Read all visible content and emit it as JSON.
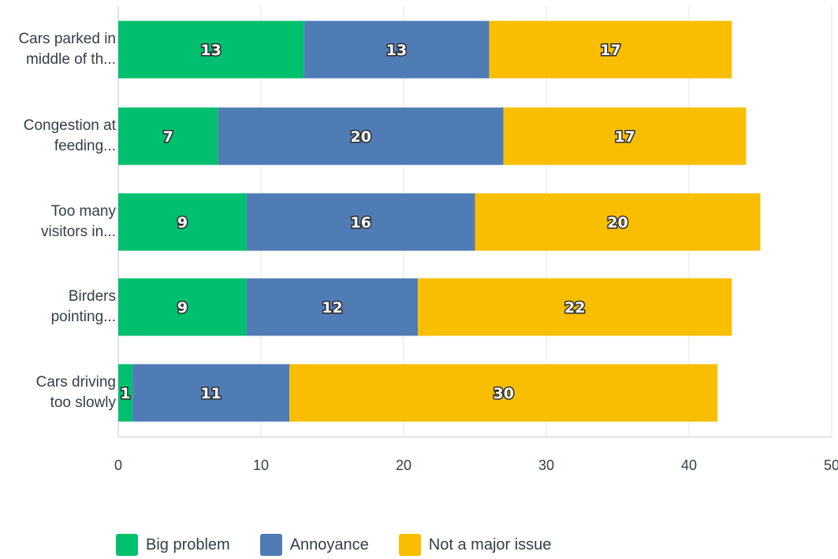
{
  "chart_data": {
    "type": "bar",
    "orientation": "horizontal",
    "stacked": true,
    "categories": [
      "Cars parked in middle of th...",
      "Congestion at feeding...",
      "Too many visitors in...",
      "Birders pointing...",
      "Cars driving too slowly"
    ],
    "category_lines": [
      [
        "Cars parked in",
        "middle of th..."
      ],
      [
        "Congestion at",
        "feeding..."
      ],
      [
        "Too many",
        "visitors in..."
      ],
      [
        "Birders",
        "pointing..."
      ],
      [
        "Cars driving",
        "too slowly"
      ]
    ],
    "series": [
      {
        "name": "Big problem",
        "color": "#00bf6f",
        "values": [
          13,
          7,
          9,
          9,
          1
        ]
      },
      {
        "name": "Annoyance",
        "color": "#507cb6",
        "values": [
          13,
          20,
          16,
          12,
          11
        ]
      },
      {
        "name": "Not a major issue",
        "color": "#f9be00",
        "values": [
          17,
          17,
          20,
          22,
          30
        ]
      }
    ],
    "xlim": [
      0,
      50
    ],
    "xticks": [
      0,
      10,
      20,
      30,
      40,
      50
    ],
    "grid": true,
    "legend_position": "bottom-left"
  }
}
